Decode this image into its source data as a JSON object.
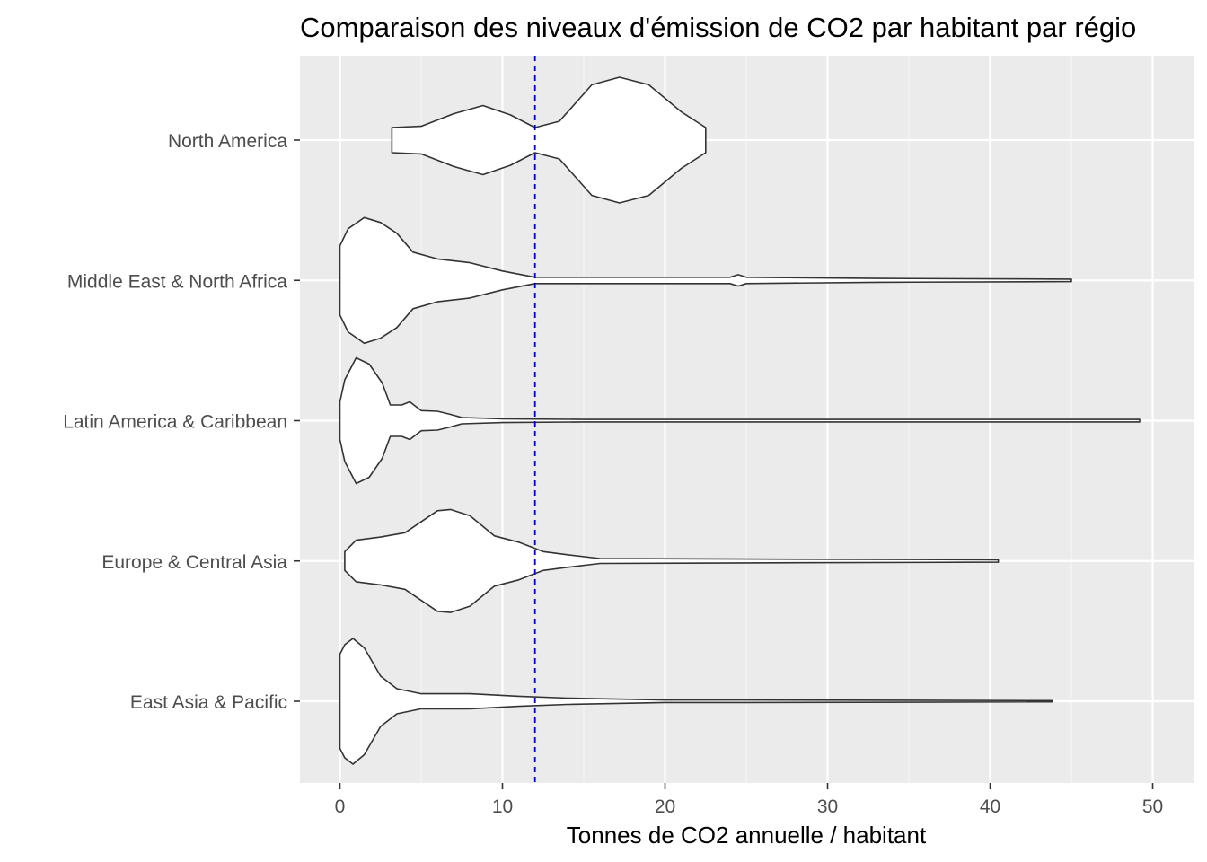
{
  "chart_data": {
    "type": "violin",
    "orientation": "horizontal",
    "title": "Comparaison des niveaux d'émission de CO2 par habitant par régio",
    "xlabel": "Tonnes de CO2 annuelle / habitant",
    "ylabel": "",
    "xlim": [
      -2.5,
      52.5
    ],
    "x_ticks": [
      "0",
      "10",
      "20",
      "30",
      "40",
      "50"
    ],
    "grid": true,
    "background": "#ebebeb",
    "categories": [
      "North America",
      "Middle East & North Africa",
      "Latin America & Caribbean",
      "Europe & Central Asia",
      "East Asia & Pacific"
    ],
    "reference_line": {
      "x": 12,
      "style": "dashed",
      "color": "#0000cc"
    },
    "violins": [
      {
        "name": "North America",
        "min": 3.2,
        "max": 22.5,
        "profile": [
          [
            3.2,
            0.2
          ],
          [
            5,
            0.22
          ],
          [
            7,
            0.42
          ],
          [
            8.8,
            0.55
          ],
          [
            10.5,
            0.4
          ],
          [
            12,
            0.2
          ],
          [
            13.5,
            0.3
          ],
          [
            15.5,
            0.88
          ],
          [
            17.2,
            1.0
          ],
          [
            19,
            0.88
          ],
          [
            21,
            0.45
          ],
          [
            22.5,
            0.2
          ]
        ]
      },
      {
        "name": "Middle East & North Africa",
        "min": 0,
        "max": 45,
        "profile": [
          [
            0,
            0.55
          ],
          [
            0.5,
            0.82
          ],
          [
            1.5,
            1.0
          ],
          [
            2.5,
            0.92
          ],
          [
            3.5,
            0.75
          ],
          [
            4.5,
            0.45
          ],
          [
            6,
            0.34
          ],
          [
            8,
            0.28
          ],
          [
            10,
            0.15
          ],
          [
            12,
            0.05
          ],
          [
            18,
            0.05
          ],
          [
            24,
            0.05
          ],
          [
            24.5,
            0.09
          ],
          [
            25,
            0.05
          ],
          [
            33,
            0.03
          ],
          [
            45,
            0.02
          ]
        ]
      },
      {
        "name": "Latin America & Caribbean",
        "min": 0,
        "max": 49.2,
        "profile": [
          [
            0,
            0.3
          ],
          [
            0.3,
            0.65
          ],
          [
            1,
            1.0
          ],
          [
            1.8,
            0.9
          ],
          [
            2.6,
            0.6
          ],
          [
            3.1,
            0.25
          ],
          [
            3.8,
            0.25
          ],
          [
            4.3,
            0.3
          ],
          [
            5,
            0.16
          ],
          [
            6,
            0.15
          ],
          [
            6.8,
            0.1
          ],
          [
            7.5,
            0.05
          ],
          [
            10,
            0.03
          ],
          [
            15,
            0.02
          ],
          [
            25,
            0.02
          ],
          [
            40,
            0.02
          ],
          [
            49.2,
            0.02
          ]
        ]
      },
      {
        "name": "Europe & Central Asia",
        "min": 0.3,
        "max": 40.5,
        "profile": [
          [
            0.3,
            0.15
          ],
          [
            1,
            0.33
          ],
          [
            2.5,
            0.38
          ],
          [
            4,
            0.45
          ],
          [
            6,
            0.8
          ],
          [
            6.8,
            0.82
          ],
          [
            8,
            0.72
          ],
          [
            9.5,
            0.4
          ],
          [
            11,
            0.3
          ],
          [
            12.5,
            0.15
          ],
          [
            14,
            0.1
          ],
          [
            16,
            0.04
          ],
          [
            25,
            0.03
          ],
          [
            40.5,
            0.02
          ]
        ]
      },
      {
        "name": "East Asia & Pacific",
        "min": 0,
        "max": 43.8,
        "profile": [
          [
            0,
            0.75
          ],
          [
            0.3,
            0.9
          ],
          [
            0.8,
            1.0
          ],
          [
            1.5,
            0.85
          ],
          [
            2.5,
            0.4
          ],
          [
            3.5,
            0.2
          ],
          [
            5,
            0.12
          ],
          [
            8,
            0.12
          ],
          [
            11,
            0.08
          ],
          [
            14,
            0.05
          ],
          [
            20,
            0.02
          ],
          [
            25,
            0.02
          ],
          [
            43.8,
            0.01
          ]
        ]
      }
    ]
  }
}
